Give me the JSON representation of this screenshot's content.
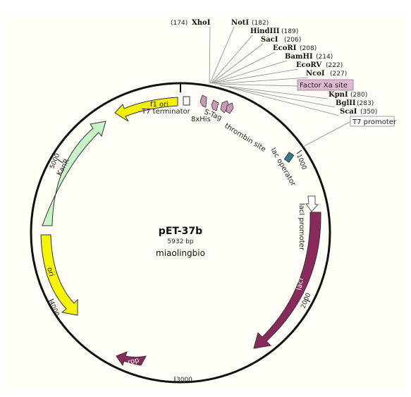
{
  "plasmid": {
    "name": "pET-37b",
    "size": "5932 bp",
    "company": "miaolingbio"
  },
  "colors": {
    "backbone": "#111111",
    "f1_ori": "#f2f200",
    "kanr": "#c8f5c8",
    "ori": "#f5f500",
    "lacI": "#8a2a5c",
    "rop": "#8a2a5c",
    "tag": "#c99ab5",
    "lac_operator": "#2f7d8c",
    "factor_xa_box": "#e0b9d0"
  },
  "sites": [
    {
      "name": "XhoI",
      "pos": "(174)"
    },
    {
      "name": "NotI",
      "pos": "(182)"
    },
    {
      "name": "HindIII",
      "pos": "(189)"
    },
    {
      "name": "SacI",
      "pos": "(206)"
    },
    {
      "name": "EcoRI",
      "pos": "(208)"
    },
    {
      "name": "BamHI",
      "pos": "(214)"
    },
    {
      "name": "EcoRV",
      "pos": "(222)"
    },
    {
      "name": "NcoI",
      "pos": "(227)"
    },
    {
      "name": "KpnI",
      "pos": "(280)"
    },
    {
      "name": "BglII",
      "pos": "(283)"
    },
    {
      "name": "ScaI",
      "pos": "(350)"
    }
  ],
  "features": {
    "factor_xa": "Factor Xa site",
    "t7_promoter": "T7 promoter",
    "t7_terminator": "T7 terminator",
    "his": "8xHis",
    "s_tag": "S-Tag",
    "thrombin": "thrombin site",
    "lac_operator": "lac operator",
    "lacI_promoter": "lacI promoter",
    "f1_ori": "f1 ori",
    "kanr": "KanR",
    "ori": "ori",
    "lacI": "lacI",
    "rop": "rop"
  },
  "ticks": [
    "1000",
    "2000",
    "3000",
    "4000",
    "5000"
  ]
}
